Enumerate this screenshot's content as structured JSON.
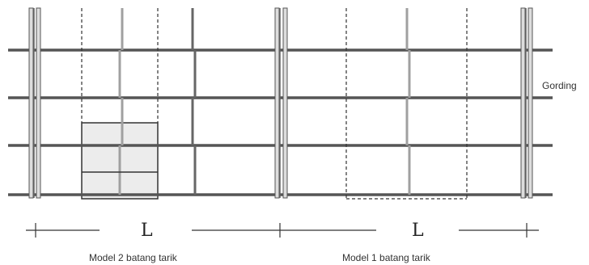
{
  "labels": {
    "gording": "Gording",
    "span_left": "L",
    "span_right": "L",
    "model_left": "Model 2 batang tarik",
    "model_right": "Model 1 batang tarik"
  },
  "colors": {
    "purlin": "#555555",
    "rafter": "#666666",
    "tie_rod": "#a0a0a0",
    "panel_fill": "#e8e8e8",
    "outline": "#444444"
  }
}
